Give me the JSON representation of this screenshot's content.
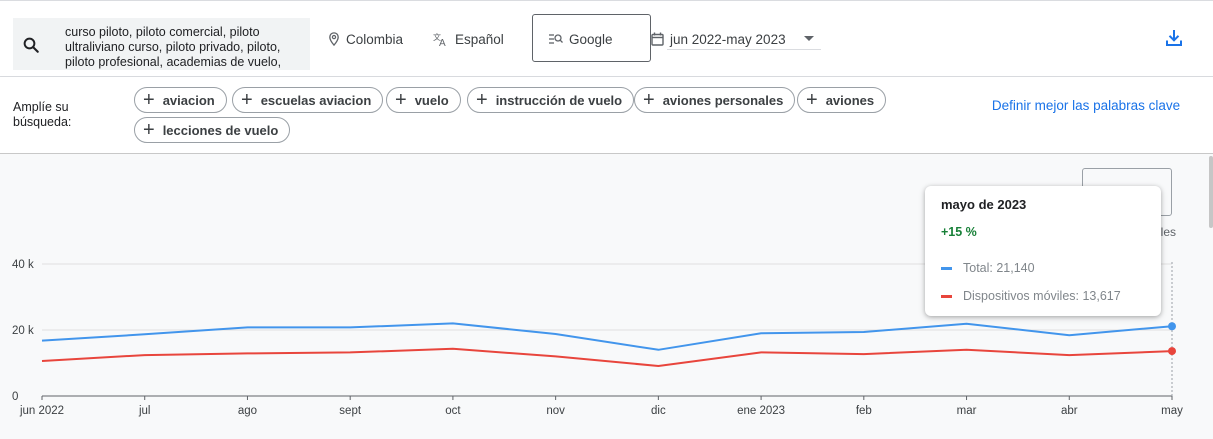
{
  "search": {
    "query": "curso piloto, piloto comercial, piloto ultraliviano curso, piloto privado, piloto, piloto profesional, academias de vuelo,"
  },
  "filters": {
    "location": "Colombia",
    "language": "Español",
    "engine": "Google",
    "date_range": "jun 2022-may 2023"
  },
  "expand": {
    "label": "Amplíe su búsqueda:",
    "chips": [
      "aviacion",
      "escuelas aviacion",
      "vuelo",
      "instrucción de vuelo",
      "aviones personales",
      "aviones",
      "lecciones de vuelo"
    ],
    "refine_link": "Definir mejor las palabras clave"
  },
  "peek_legend_text": "viles",
  "colors": {
    "total": "#4295ec",
    "mobile": "#e8453c",
    "accent": "#1a73e8",
    "positive": "#188038"
  },
  "tooltip": {
    "title": "mayo de 2023",
    "change": "+15 %",
    "total_text": "Total: 21,140",
    "mobile_text": "Dispositivos móviles: 13,617"
  },
  "chart_data": {
    "type": "line",
    "categories": [
      "jun 2022",
      "jul",
      "ago",
      "sept",
      "oct",
      "nov",
      "dic",
      "ene 2023",
      "feb",
      "mar",
      "abr",
      "may"
    ],
    "y_ticks": [
      "0",
      "20 k",
      "40 k"
    ],
    "ylim": [
      0,
      40000
    ],
    "grid": true,
    "series": [
      {
        "name": "Total",
        "values": [
          16800,
          18700,
          20800,
          20800,
          22000,
          18800,
          14000,
          19000,
          19400,
          21900,
          18400,
          21140
        ]
      },
      {
        "name": "Dispositivos móviles",
        "values": [
          10600,
          12400,
          12900,
          13200,
          14300,
          12000,
          9100,
          13200,
          12700,
          14000,
          12400,
          13617
        ]
      }
    ]
  }
}
